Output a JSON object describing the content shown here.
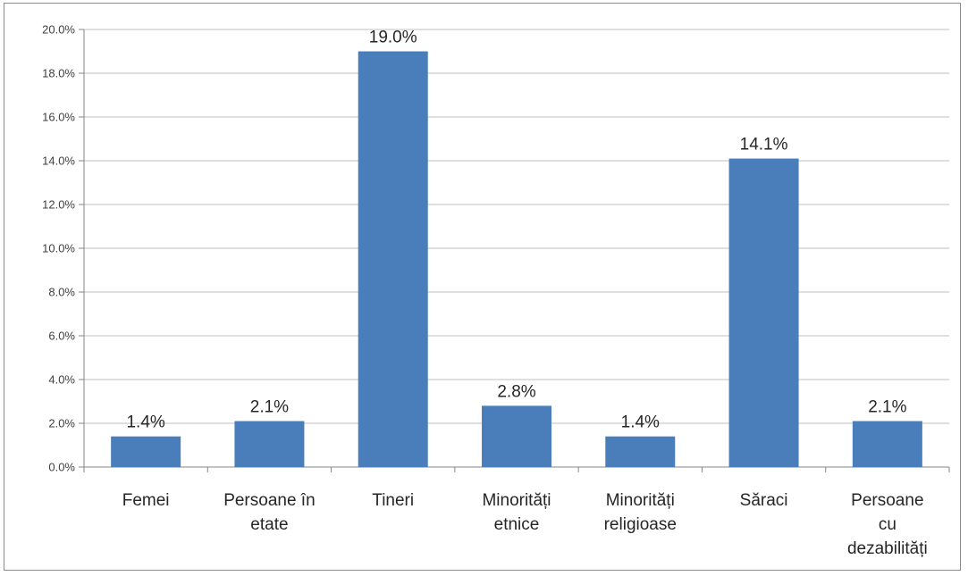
{
  "chart_data": {
    "type": "bar",
    "categories": [
      [
        "Femei"
      ],
      [
        "Persoane în",
        "etate"
      ],
      [
        "Tineri"
      ],
      [
        "Minorități",
        "etnice"
      ],
      [
        "Minorități",
        "religioase"
      ],
      [
        "Săraci"
      ],
      [
        "Persoane",
        "cu",
        "dezabilități"
      ]
    ],
    "values": [
      1.4,
      2.1,
      19.0,
      2.8,
      1.4,
      14.1,
      2.1
    ],
    "data_labels": [
      "1.4%",
      "2.1%",
      "19.0%",
      "2.8%",
      "1.4%",
      "14.1%",
      "2.1%"
    ],
    "y_ticks": [
      0,
      2,
      4,
      6,
      8,
      10,
      12,
      14,
      16,
      18,
      20
    ],
    "y_tick_labels": [
      "0.0%",
      "2.0%",
      "4.0%",
      "6.0%",
      "8.0%",
      "10.0%",
      "12.0%",
      "14.0%",
      "16.0%",
      "18.0%",
      "20.0%"
    ],
    "ylim": [
      0,
      20
    ],
    "grid": true,
    "legend": "none",
    "colors": {
      "bar": "#4a7ebb",
      "grid": "#bfbfbf",
      "axis": "#868686"
    }
  }
}
